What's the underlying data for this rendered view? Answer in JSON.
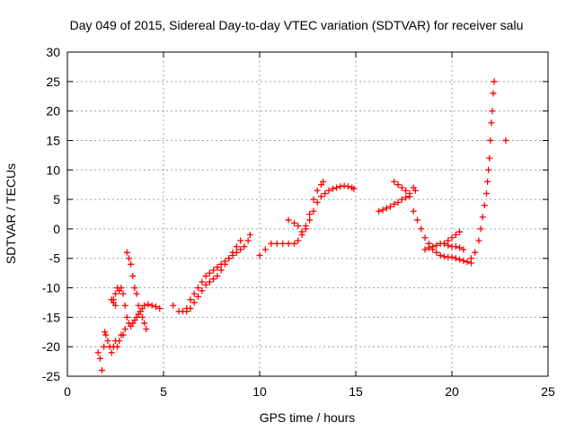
{
  "chart_data": {
    "type": "scatter",
    "title": "Day 049 of 2015, Sidereal Day-to-day VTEC variation (SDTVAR) for receiver salu",
    "xlabel": "GPS time / hours",
    "ylabel": "SDTVAR / TECUs",
    "xlim": [
      0,
      25
    ],
    "ylim": [
      -25,
      30
    ],
    "xticks": [
      0,
      5,
      10,
      15,
      20,
      25
    ],
    "yticks": [
      -25,
      -20,
      -15,
      -10,
      -5,
      0,
      5,
      10,
      15,
      20,
      25,
      30
    ],
    "xtick_labels": [
      "0",
      "5",
      "10",
      "15",
      "20",
      "25"
    ],
    "ytick_labels": [
      "-25",
      "-20",
      "-15",
      "-10",
      "-5",
      "0",
      "5",
      "10",
      "15",
      "20",
      "25",
      "30"
    ],
    "grid": true,
    "marker": "+",
    "color": "#ff0000",
    "series": [
      {
        "name": "SDTVAR",
        "x": [
          1.6,
          1.7,
          1.8,
          1.9,
          1.95,
          2.0,
          2.1,
          2.2,
          2.3,
          2.4,
          2.5,
          2.6,
          2.7,
          2.8,
          2.9,
          3.0,
          2.4,
          2.5,
          2.6,
          2.7,
          2.8,
          2.9,
          3.0,
          3.1,
          3.2,
          3.3,
          3.4,
          3.5,
          3.6,
          3.7,
          3.8,
          3.9,
          4.0,
          4.2,
          4.4,
          4.6,
          4.8,
          3.1,
          3.2,
          3.3,
          3.4,
          3.5,
          3.6,
          3.7,
          3.8,
          3.9,
          4.0,
          4.1,
          2.3,
          2.4,
          2.5,
          5.5,
          5.8,
          6.0,
          6.2,
          6.4,
          6.6,
          6.8,
          7.0,
          7.2,
          7.4,
          7.6,
          7.8,
          8.0,
          8.2,
          8.4,
          8.6,
          8.8,
          9.0,
          9.2,
          9.4,
          9.5,
          6.2,
          6.4,
          6.6,
          6.8,
          7.0,
          7.2,
          7.4,
          7.6,
          7.8,
          8.0,
          8.2,
          8.4,
          8.6,
          8.8,
          9.0,
          10.0,
          10.3,
          10.6,
          10.9,
          11.2,
          11.5,
          11.8,
          12.0,
          12.2,
          12.4,
          12.6,
          12.8,
          13.0,
          13.2,
          13.4,
          13.6,
          13.8,
          14.0,
          14.2,
          14.4,
          14.6,
          14.8,
          14.9,
          11.5,
          11.8,
          12.0,
          12.2,
          12.4,
          12.6,
          12.8,
          13.0,
          13.2,
          13.3,
          16.2,
          16.4,
          16.6,
          16.8,
          17.0,
          17.2,
          17.4,
          17.6,
          17.8,
          17.0,
          17.2,
          17.4,
          17.6,
          17.8,
          18.0,
          18.1,
          18.0,
          18.2,
          18.4,
          18.6,
          18.8,
          19.0,
          19.2,
          19.4,
          19.6,
          19.8,
          20.0,
          20.2,
          20.4,
          20.6,
          20.8,
          21.0,
          18.6,
          18.8,
          19.0,
          19.2,
          19.4,
          19.6,
          19.8,
          20.0,
          20.2,
          20.4,
          20.6,
          19.6,
          19.8,
          20.0,
          20.2,
          20.4,
          21.0,
          21.2,
          21.4,
          21.5,
          21.6,
          21.7,
          21.8,
          21.85,
          21.9,
          21.95,
          22.0,
          22.05,
          22.1,
          22.15,
          22.2,
          22.8
        ],
        "y": [
          -21,
          -22,
          -24,
          -20,
          -17.5,
          -18,
          -19,
          -20,
          -21,
          -20,
          -19,
          -20,
          -19,
          -18,
          -18,
          -17,
          -12,
          -11,
          -10,
          -10.5,
          -10,
          -11,
          -13,
          -15,
          -16,
          -16.5,
          -16,
          -15.5,
          -15,
          -14.5,
          -14,
          -13.5,
          -13,
          -12.8,
          -13,
          -13.2,
          -13.5,
          -4,
          -5,
          -6,
          -8,
          -10,
          -11,
          -13,
          -14,
          -15,
          -16,
          -17,
          -12,
          -12.5,
          -13,
          -13,
          -14,
          -14,
          -13.5,
          -12,
          -11,
          -10,
          -9,
          -8,
          -7.5,
          -7,
          -6.5,
          -6,
          -5.5,
          -5,
          -4.5,
          -4,
          -3.5,
          -3,
          -2,
          -1,
          -14,
          -13.5,
          -12.5,
          -11.5,
          -10.5,
          -9.5,
          -9,
          -8.5,
          -8,
          -7,
          -6,
          -5,
          -4,
          -3,
          -2,
          -4.5,
          -3.5,
          -2.5,
          -2.5,
          -2.5,
          -2.5,
          -2.5,
          -2,
          -1,
          0,
          1.5,
          3,
          4.5,
          5.5,
          6,
          6.5,
          6.8,
          7,
          7.2,
          7.3,
          7.2,
          7,
          6.8,
          1.5,
          1,
          0.5,
          -0.5,
          0.5,
          2.5,
          5,
          6.5,
          7.5,
          8,
          3,
          3.2,
          3.5,
          3.8,
          4.2,
          4.5,
          5,
          5.3,
          5.5,
          8,
          7.5,
          7,
          6.5,
          6,
          7,
          6.5,
          3,
          1.5,
          0,
          -1.5,
          -2.5,
          -3.5,
          -4,
          -4.5,
          -4.7,
          -4.8,
          -4.8,
          -5,
          -5.2,
          -5.4,
          -5.6,
          -5.8,
          -3.5,
          -3.2,
          -3,
          -2.8,
          -2.5,
          -2.5,
          -2.8,
          -3,
          -3,
          -3.2,
          -3.5,
          -2.5,
          -2,
          -1.5,
          -1,
          -0.5,
          -5,
          -4,
          -2,
          0,
          2,
          4,
          6,
          8,
          10,
          12,
          15,
          18,
          20,
          23,
          25,
          15
        ]
      }
    ]
  }
}
